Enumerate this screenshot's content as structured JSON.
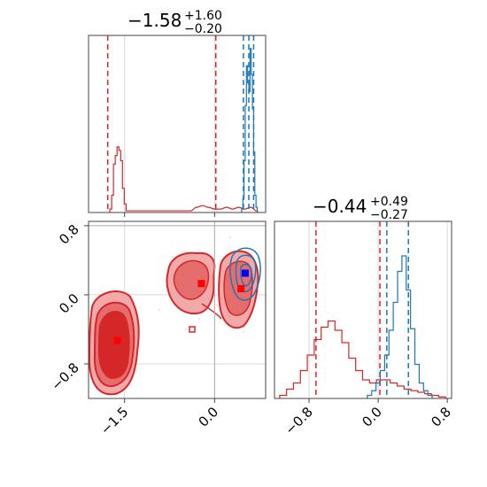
{
  "chart_data": [
    {
      "panel": "marginal-x",
      "type": "histogram",
      "title": {
        "value": "−1.58",
        "plus": "+1.60",
        "minus": "−0.20"
      },
      "xlim": [
        -2.1,
        0.85
      ],
      "grid": true,
      "series": [
        {
          "color": "#d62728",
          "bins": [
            {
              "x": -1.73,
              "y": 0.02
            },
            {
              "x": -1.7,
              "y": 0.1
            },
            {
              "x": -1.67,
              "y": 0.28
            },
            {
              "x": -1.64,
              "y": 0.33
            },
            {
              "x": -1.61,
              "y": 0.38
            },
            {
              "x": -1.58,
              "y": 0.36
            },
            {
              "x": -1.55,
              "y": 0.3
            },
            {
              "x": -1.52,
              "y": 0.14
            },
            {
              "x": -1.49,
              "y": 0.05
            },
            {
              "x": -1.46,
              "y": 0.01
            },
            {
              "x": -0.4,
              "y": 0.01
            },
            {
              "x": -0.3,
              "y": 0.03
            },
            {
              "x": -0.2,
              "y": 0.04
            },
            {
              "x": -0.1,
              "y": 0.03
            },
            {
              "x": 0.0,
              "y": 0.02
            },
            {
              "x": 0.1,
              "y": 0.02
            },
            {
              "x": 0.2,
              "y": 0.03
            },
            {
              "x": 0.3,
              "y": 0.02
            },
            {
              "x": 0.4,
              "y": 0.03
            },
            {
              "x": 0.5,
              "y": 0.02
            },
            {
              "x": 0.6,
              "y": 0.03
            },
            {
              "x": 0.7,
              "y": 0.01
            }
          ],
          "quantiles": [
            -1.78,
            0.02
          ]
        },
        {
          "color": "#1f77b4",
          "bins": [
            {
              "x": 0.46,
              "y": 0.02
            },
            {
              "x": 0.48,
              "y": 0.08
            },
            {
              "x": 0.5,
              "y": 0.3
            },
            {
              "x": 0.52,
              "y": 0.62
            },
            {
              "x": 0.54,
              "y": 0.85
            },
            {
              "x": 0.56,
              "y": 0.75
            },
            {
              "x": 0.58,
              "y": 0.7
            },
            {
              "x": 0.6,
              "y": 0.95
            },
            {
              "x": 0.62,
              "y": 0.8
            },
            {
              "x": 0.64,
              "y": 0.6
            },
            {
              "x": 0.66,
              "y": 0.35
            },
            {
              "x": 0.68,
              "y": 0.1
            },
            {
              "x": 0.7,
              "y": 0.03
            }
          ],
          "quantiles": [
            0.48,
            0.57,
            0.65
          ]
        }
      ]
    },
    {
      "panel": "joint",
      "type": "scatter",
      "xlim": [
        -2.1,
        0.85
      ],
      "ylim": [
        -1.2,
        0.85
      ],
      "x_ticks": [
        "−1.5",
        "0.0"
      ],
      "y_ticks": [
        "0.8",
        "0.0",
        "−0.8"
      ],
      "grid": true,
      "truth_lines": {
        "x": 0.0,
        "y": 0.8
      },
      "markers": [
        {
          "x": -1.62,
          "y": -0.53,
          "color": "#ff0000"
        },
        {
          "x": -0.22,
          "y": 0.13,
          "color": "#ff0000"
        },
        {
          "x": 0.44,
          "y": 0.07,
          "color": "#ff0000"
        },
        {
          "x": 0.51,
          "y": 0.25,
          "color": "#0000ff"
        }
      ]
    },
    {
      "panel": "marginal-y",
      "type": "histogram",
      "title": {
        "value": "−0.44",
        "plus": "+0.49",
        "minus": "−0.27"
      },
      "xlim": [
        -1.2,
        0.85
      ],
      "x_ticks": [
        "−0.8",
        "0.0",
        "0.8"
      ],
      "grid": true,
      "series": [
        {
          "color": "#d62728",
          "bins": [
            {
              "x": -1.1,
              "y": 0.02
            },
            {
              "x": -1.02,
              "y": 0.06
            },
            {
              "x": -0.94,
              "y": 0.1
            },
            {
              "x": -0.86,
              "y": 0.18
            },
            {
              "x": -0.78,
              "y": 0.28
            },
            {
              "x": -0.7,
              "y": 0.38
            },
            {
              "x": -0.62,
              "y": 0.46
            },
            {
              "x": -0.54,
              "y": 0.5
            },
            {
              "x": -0.46,
              "y": 0.44
            },
            {
              "x": -0.38,
              "y": 0.36
            },
            {
              "x": -0.3,
              "y": 0.26
            },
            {
              "x": -0.22,
              "y": 0.18
            },
            {
              "x": -0.14,
              "y": 0.12
            },
            {
              "x": -0.06,
              "y": 0.1
            },
            {
              "x": 0.02,
              "y": 0.12
            },
            {
              "x": 0.1,
              "y": 0.12
            },
            {
              "x": 0.18,
              "y": 0.1
            },
            {
              "x": 0.26,
              "y": 0.08
            },
            {
              "x": 0.34,
              "y": 0.06
            },
            {
              "x": 0.42,
              "y": 0.05
            },
            {
              "x": 0.5,
              "y": 0.04
            },
            {
              "x": 0.58,
              "y": 0.03
            },
            {
              "x": 0.66,
              "y": 0.02
            },
            {
              "x": 0.74,
              "y": 0.01
            }
          ],
          "quantiles": [
            -0.72,
            0.02
          ]
        },
        {
          "color": "#1f77b4",
          "bins": [
            {
              "x": -0.1,
              "y": 0.02
            },
            {
              "x": -0.05,
              "y": 0.05
            },
            {
              "x": 0.0,
              "y": 0.1
            },
            {
              "x": 0.05,
              "y": 0.18
            },
            {
              "x": 0.1,
              "y": 0.28
            },
            {
              "x": 0.15,
              "y": 0.44
            },
            {
              "x": 0.2,
              "y": 0.62
            },
            {
              "x": 0.25,
              "y": 0.82
            },
            {
              "x": 0.3,
              "y": 0.92
            },
            {
              "x": 0.35,
              "y": 0.7
            },
            {
              "x": 0.4,
              "y": 0.45
            },
            {
              "x": 0.45,
              "y": 0.22
            },
            {
              "x": 0.5,
              "y": 0.1
            },
            {
              "x": 0.55,
              "y": 0.05
            },
            {
              "x": 0.6,
              "y": 0.02
            }
          ],
          "quantiles": [
            0.1,
            0.35
          ]
        }
      ]
    }
  ],
  "colors": {
    "red": "#d62728",
    "blue": "#1f77b4",
    "marker_red": "#ff0000",
    "marker_blue": "#0000ff"
  }
}
